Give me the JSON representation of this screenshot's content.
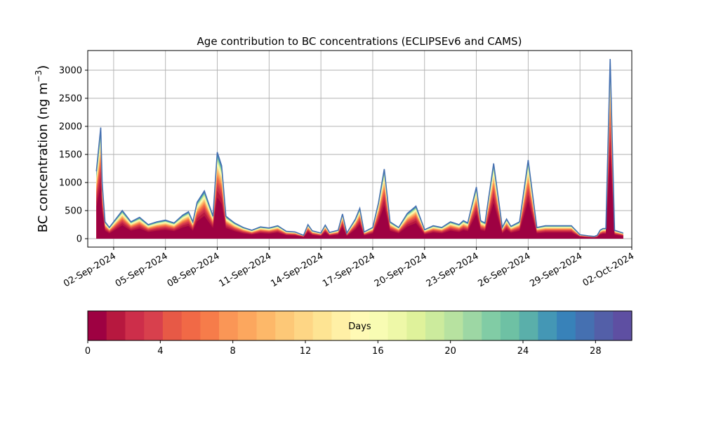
{
  "chart_data": {
    "type": "area",
    "title": "Age contribution to BC concentrations (ECLIPSEv6 and CAMS)",
    "ylabel": "BC concentration (ng m",
    "ylabel_sup": "−3",
    "ylabel_tail": ")",
    "xlim": [
      "2024-08-31T12:00",
      "2024-10-02T00:00"
    ],
    "ylim": [
      -150,
      3350
    ],
    "yticks": [
      0,
      500,
      1000,
      1500,
      2000,
      2500,
      3000
    ],
    "xticks": [
      "2024-09-02",
      "2024-09-05",
      "2024-09-08",
      "2024-09-11",
      "2024-09-14",
      "2024-09-17",
      "2024-09-20",
      "2024-09-23",
      "2024-09-26",
      "2024-09-29",
      "2024-10-02"
    ],
    "xtick_labels": [
      "02-Sep-2024",
      "05-Sep-2024",
      "08-Sep-2024",
      "11-Sep-2024",
      "14-Sep-2024",
      "17-Sep-2024",
      "20-Sep-2024",
      "23-Sep-2024",
      "26-Sep-2024",
      "29-Sep-2024",
      "02-Oct-2024"
    ],
    "grid": true,
    "series_note_stack_order": "age bins from 0 days (bottom) to 30 days (top)",
    "total": {
      "x": [
        "2024-09-01T00:00",
        "2024-09-01T06:00",
        "2024-09-01T08:00",
        "2024-09-01T12:00",
        "2024-09-01T18:00",
        "2024-09-02T00:00",
        "2024-09-02T12:00",
        "2024-09-03T00:00",
        "2024-09-03T12:00",
        "2024-09-04T00:00",
        "2024-09-04T12:00",
        "2024-09-05T00:00",
        "2024-09-05T12:00",
        "2024-09-06T00:00",
        "2024-09-06T08:00",
        "2024-09-06T14:00",
        "2024-09-06T20:00",
        "2024-09-07T06:00",
        "2024-09-07T18:00",
        "2024-09-08T00:00",
        "2024-09-08T06:00",
        "2024-09-08T12:00",
        "2024-09-09T00:00",
        "2024-09-09T12:00",
        "2024-09-10T00:00",
        "2024-09-10T12:00",
        "2024-09-11T00:00",
        "2024-09-11T12:00",
        "2024-09-12T00:00",
        "2024-09-12T12:00",
        "2024-09-13T00:00",
        "2024-09-13T06:00",
        "2024-09-13T12:00",
        "2024-09-14T00:00",
        "2024-09-14T06:00",
        "2024-09-14T12:00",
        "2024-09-15T00:00",
        "2024-09-15T06:00",
        "2024-09-15T12:00",
        "2024-09-16T00:00",
        "2024-09-16T06:00",
        "2024-09-16T12:00",
        "2024-09-17T00:00",
        "2024-09-17T08:00",
        "2024-09-17T16:00",
        "2024-09-18T00:00",
        "2024-09-18T12:00",
        "2024-09-19T00:00",
        "2024-09-19T12:00",
        "2024-09-20T00:00",
        "2024-09-20T12:00",
        "2024-09-21T00:00",
        "2024-09-21T12:00",
        "2024-09-22T00:00",
        "2024-09-22T06:00",
        "2024-09-22T12:00",
        "2024-09-22T18:00",
        "2024-09-23T00:00",
        "2024-09-23T06:00",
        "2024-09-23T12:00",
        "2024-09-24T00:00",
        "2024-09-24T12:00",
        "2024-09-24T18:00",
        "2024-09-25T00:00",
        "2024-09-25T12:00",
        "2024-09-26T00:00",
        "2024-09-26T12:00",
        "2024-09-27T00:00",
        "2024-09-27T12:00",
        "2024-09-28T00:00",
        "2024-09-28T12:00",
        "2024-09-29T00:00",
        "2024-09-29T12:00",
        "2024-09-29T20:00",
        "2024-09-30T00:00",
        "2024-09-30T04:00",
        "2024-09-30T08:00",
        "2024-09-30T12:00",
        "2024-09-30T18:00",
        "2024-10-01T00:00",
        "2024-10-01T12:00"
      ],
      "y": [
        1200,
        1980,
        1000,
        300,
        200,
        300,
        500,
        300,
        380,
        250,
        300,
        330,
        280,
        420,
        480,
        300,
        650,
        850,
        400,
        1540,
        1300,
        400,
        280,
        200,
        150,
        210,
        190,
        230,
        130,
        120,
        60,
        250,
        140,
        100,
        240,
        110,
        150,
        440,
        100,
        350,
        540,
        120,
        200,
        640,
        1240,
        300,
        200,
        450,
        580,
        160,
        230,
        200,
        300,
        250,
        320,
        280,
        600,
        920,
        320,
        280,
        1340,
        200,
        350,
        220,
        300,
        1400,
        200,
        230,
        230,
        230,
        230,
        70,
        50,
        40,
        60,
        150,
        180,
        180,
        3200,
        150,
        100
      ]
    },
    "colorbar": {
      "label": "Days",
      "ticks": [
        0,
        4,
        8,
        12,
        16,
        20,
        24,
        28
      ],
      "range": [
        0,
        30
      ],
      "colormap": "Spectral",
      "colors": [
        "#9e0142",
        "#b7183f",
        "#cd2e4a",
        "#d8404d",
        "#e75946",
        "#f16946",
        "#f67c4a",
        "#fa9656",
        "#fca75e",
        "#fdb869",
        "#fdc877",
        "#fed685",
        "#fee493",
        "#fff0a6",
        "#fffab5",
        "#f8fcb3",
        "#eef8a8",
        "#dff29b",
        "#cceb9d",
        "#b7e2a0",
        "#9dd7a4",
        "#81cca5",
        "#6ec1a4",
        "#5aafaa",
        "#4497b5",
        "#3882b9",
        "#4570b1",
        "#535fa8",
        "#5e4fa2"
      ]
    }
  }
}
